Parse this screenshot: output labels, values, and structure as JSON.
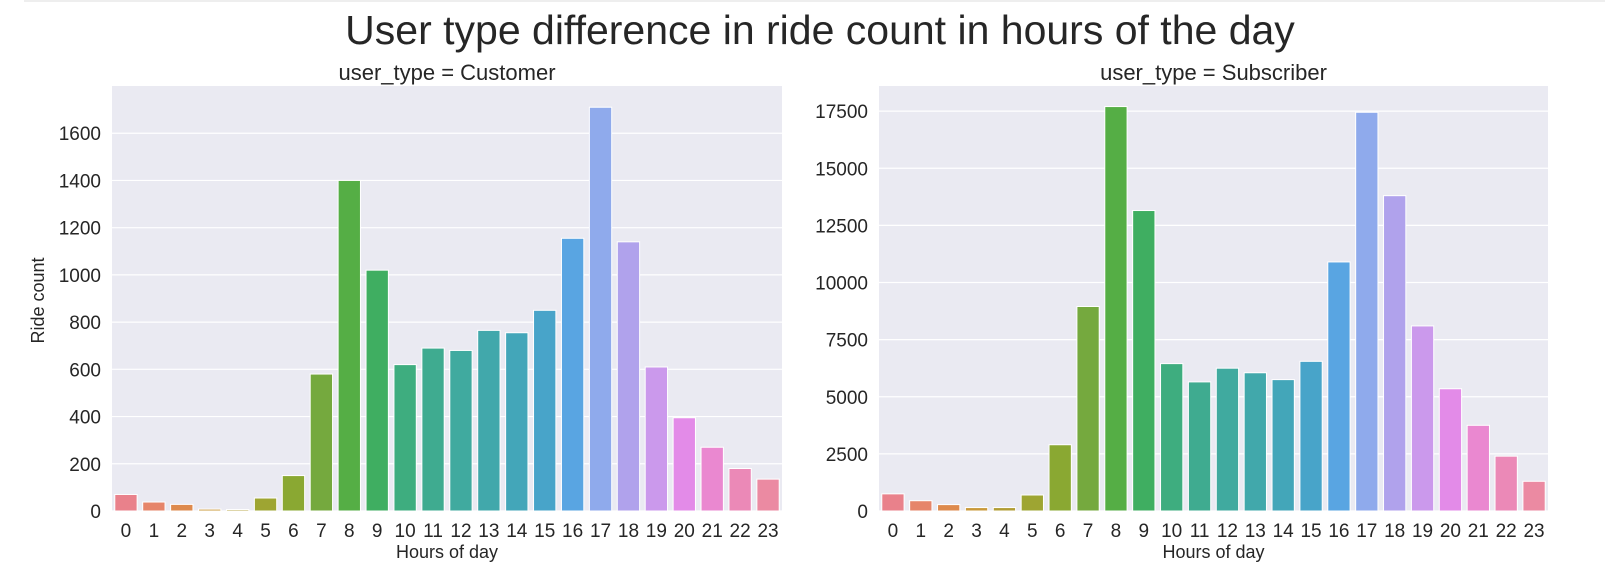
{
  "title": "User type difference in ride count in hours of the day",
  "colors": {
    "panel_bg": "#eaeaf2",
    "grid": "#ffffff",
    "text": "#262626"
  },
  "chart_data": [
    {
      "type": "bar",
      "title": "user_type = Customer",
      "xlabel": "Hours of day",
      "ylabel": "Ride count",
      "categories": [
        "0",
        "1",
        "2",
        "3",
        "4",
        "5",
        "6",
        "7",
        "8",
        "9",
        "10",
        "11",
        "12",
        "13",
        "14",
        "15",
        "16",
        "17",
        "18",
        "19",
        "20",
        "21",
        "22",
        "23"
      ],
      "values": [
        70,
        38,
        28,
        8,
        6,
        55,
        150,
        580,
        1400,
        1020,
        620,
        690,
        680,
        765,
        755,
        850,
        1155,
        1710,
        1140,
        610,
        395,
        270,
        180,
        135
      ],
      "ylim": [
        0,
        1800
      ],
      "yticks": [
        0,
        200,
        400,
        600,
        800,
        1000,
        1200,
        1400,
        1600
      ],
      "grid": true
    },
    {
      "type": "bar",
      "title": "user_type = Subscriber",
      "xlabel": "Hours of day",
      "ylabel": "",
      "categories": [
        "0",
        "1",
        "2",
        "3",
        "4",
        "5",
        "6",
        "7",
        "8",
        "9",
        "10",
        "11",
        "12",
        "13",
        "14",
        "15",
        "16",
        "17",
        "18",
        "19",
        "20",
        "21",
        "22",
        "23"
      ],
      "values": [
        750,
        450,
        280,
        150,
        150,
        700,
        2900,
        8950,
        17700,
        13150,
        6450,
        5650,
        6250,
        6050,
        5750,
        6550,
        10900,
        17450,
        13800,
        8100,
        5350,
        3750,
        2400,
        1300
      ],
      "ylim": [
        0,
        18600
      ],
      "yticks": [
        0,
        2500,
        5000,
        7500,
        10000,
        12500,
        15000,
        17500
      ],
      "grid": true
    }
  ]
}
